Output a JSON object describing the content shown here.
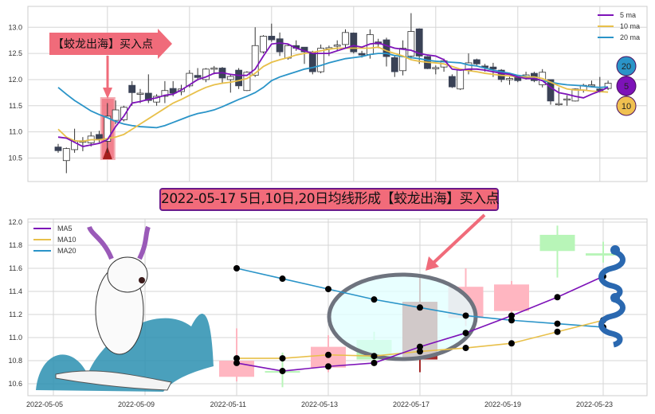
{
  "colors": {
    "ma5": "#7d12b8",
    "ma10": "#e8c04a",
    "ma20": "#2a94c8",
    "candle_down": "#3a4256",
    "candle_up_fill": "#ffffff",
    "highlight": "#f06b7a",
    "bottom_up": "#ffb6c1",
    "bottom_down": "#b8f5b8",
    "signal_candle": "#a52a2a",
    "grid": "#d6d6d6"
  },
  "top_annotation": "【蛟龙出海】买入点",
  "banner": "2022-05-17 5日,10日,20日均线形成【蛟龙出海】买入点",
  "badges": [
    {
      "label": "20",
      "color": "#2a94c8"
    },
    {
      "label": "5",
      "color": "#7d12b8"
    },
    {
      "label": "10",
      "color": "#f0c050"
    }
  ],
  "chart_data": [
    {
      "type": "candlestick",
      "ylim": [
        10.05,
        13.4
      ],
      "yticks": [
        "10.5",
        "11.0",
        "11.5",
        "12.0",
        "12.5",
        "13.0"
      ],
      "grid": true,
      "legend_placement": "top-right",
      "legend": [
        "5 ma",
        "10 ma",
        "20 ma"
      ],
      "ohlc": [
        [
          10.71,
          10.77,
          10.6,
          10.64
        ],
        [
          10.45,
          10.7,
          10.21,
          10.68
        ],
        [
          10.66,
          11.06,
          10.6,
          10.82
        ],
        [
          10.8,
          10.9,
          10.63,
          10.83
        ],
        [
          10.79,
          11.0,
          10.72,
          10.92
        ],
        [
          10.95,
          11.02,
          10.8,
          10.86
        ],
        [
          10.82,
          11.55,
          10.6,
          11.3
        ],
        [
          11.22,
          11.6,
          11.15,
          11.42
        ],
        [
          11.23,
          11.5,
          11.2,
          11.47
        ],
        [
          11.89,
          11.97,
          11.5,
          11.75
        ],
        [
          11.72,
          11.82,
          11.55,
          11.74
        ],
        [
          11.74,
          12.1,
          11.55,
          11.6
        ],
        [
          11.57,
          11.72,
          11.5,
          11.68
        ],
        [
          11.68,
          11.97,
          11.55,
          11.79
        ],
        [
          11.83,
          11.97,
          11.68,
          11.74
        ],
        [
          11.77,
          11.9,
          11.7,
          11.82
        ],
        [
          11.88,
          12.18,
          11.85,
          12.12
        ],
        [
          12.08,
          12.22,
          11.98,
          12.04
        ],
        [
          12.0,
          12.22,
          11.95,
          12.2
        ],
        [
          12.21,
          12.26,
          12.1,
          12.22
        ],
        [
          12.22,
          12.24,
          11.92,
          12.03
        ],
        [
          12.0,
          12.1,
          11.75,
          12.06
        ],
        [
          12.18,
          12.22,
          11.82,
          11.88
        ],
        [
          11.79,
          12.16,
          11.78,
          12.14
        ],
        [
          12.08,
          13.0,
          12.05,
          12.65
        ],
        [
          12.53,
          12.85,
          12.5,
          12.83
        ],
        [
          12.83,
          13.07,
          12.72,
          12.76
        ],
        [
          12.78,
          12.9,
          12.45,
          12.53
        ],
        [
          12.41,
          12.68,
          12.38,
          12.65
        ],
        [
          12.65,
          12.75,
          12.55,
          12.6
        ],
        [
          12.62,
          12.6,
          12.3,
          12.53
        ],
        [
          12.53,
          12.55,
          12.1,
          12.15
        ],
        [
          12.15,
          12.67,
          12.12,
          12.6
        ],
        [
          12.59,
          12.65,
          12.45,
          12.61
        ],
        [
          12.64,
          12.75,
          12.55,
          12.66
        ],
        [
          12.67,
          12.96,
          12.6,
          12.9
        ],
        [
          12.89,
          12.9,
          12.5,
          12.53
        ],
        [
          12.5,
          12.55,
          12.42,
          12.47
        ],
        [
          12.48,
          12.96,
          12.4,
          12.86
        ],
        [
          12.72,
          12.78,
          12.6,
          12.68
        ],
        [
          12.76,
          12.8,
          12.25,
          12.44
        ],
        [
          12.42,
          12.45,
          12.05,
          12.15
        ],
        [
          12.17,
          12.75,
          12.08,
          12.6
        ],
        [
          12.45,
          13.27,
          12.4,
          12.92
        ],
        [
          12.97,
          12.98,
          12.3,
          12.45
        ],
        [
          12.44,
          12.45,
          12.2,
          12.21
        ],
        [
          12.22,
          12.27,
          12.1,
          12.23
        ],
        [
          12.24,
          12.4,
          12.15,
          12.36
        ],
        [
          12.06,
          12.1,
          11.84,
          11.86
        ],
        [
          11.82,
          12.2,
          11.8,
          12.18
        ],
        [
          12.18,
          12.5,
          12.1,
          12.32
        ],
        [
          12.38,
          12.4,
          12.25,
          12.3
        ],
        [
          12.26,
          12.3,
          12.15,
          12.23
        ],
        [
          12.24,
          12.32,
          12.05,
          12.2
        ],
        [
          12.18,
          12.2,
          11.95,
          12.0
        ],
        [
          12.0,
          12.05,
          11.9,
          12.02
        ],
        [
          12.05,
          12.06,
          11.95,
          11.98
        ],
        [
          12.03,
          12.15,
          12.0,
          12.09
        ],
        [
          12.12,
          12.15,
          11.95,
          11.98
        ],
        [
          11.9,
          12.2,
          11.85,
          12.14
        ],
        [
          12.0,
          12.0,
          11.52,
          11.59
        ],
        [
          11.53,
          11.85,
          11.5,
          11.54
        ],
        [
          11.61,
          11.7,
          11.5,
          11.63
        ],
        [
          11.59,
          11.83,
          11.58,
          11.82
        ],
        [
          11.8,
          11.92,
          11.75,
          11.89
        ],
        [
          11.89,
          11.98,
          11.85,
          11.9
        ],
        [
          11.82,
          12.05,
          11.75,
          11.78
        ],
        [
          11.83,
          11.98,
          11.8,
          11.93
        ]
      ],
      "ma5": [
        10.9,
        10.88,
        10.8,
        10.72,
        10.75,
        10.78,
        10.85,
        11.1,
        11.3,
        11.55,
        11.58,
        11.62,
        11.65,
        11.7,
        11.72,
        11.8,
        11.9,
        12.0,
        12.05,
        12.12,
        12.13,
        12.1,
        12.08,
        12.08,
        12.2,
        12.45,
        12.68,
        12.7,
        12.68,
        12.6,
        12.55,
        12.5,
        12.5,
        12.5,
        12.55,
        12.6,
        12.65,
        12.62,
        12.68,
        12.7,
        12.65,
        12.6,
        12.58,
        12.56,
        12.5,
        12.47,
        12.45,
        12.38,
        12.2,
        12.18,
        12.2,
        12.2,
        12.18,
        12.15,
        12.12,
        12.1,
        12.05,
        12.02,
        12.02,
        11.98,
        11.85,
        11.75,
        11.72,
        11.68,
        11.65,
        11.72,
        11.78,
        11.85
      ],
      "ma10": [
        11.05,
        10.9,
        10.83,
        10.82,
        10.85,
        10.85,
        10.87,
        10.9,
        10.95,
        11.05,
        11.15,
        11.25,
        11.35,
        11.45,
        11.55,
        11.62,
        11.7,
        11.78,
        11.85,
        11.9,
        11.93,
        11.95,
        11.98,
        12.02,
        12.12,
        12.25,
        12.33,
        12.38,
        12.42,
        12.47,
        12.5,
        12.52,
        12.55,
        12.58,
        12.6,
        12.6,
        12.6,
        12.6,
        12.6,
        12.62,
        12.55,
        12.5,
        12.45,
        12.38,
        12.35,
        12.33,
        12.32,
        12.3,
        12.25,
        12.2,
        12.17,
        12.15,
        12.12,
        12.1,
        12.08,
        12.07,
        12.05,
        12.05,
        12.05,
        12.02,
        11.95,
        11.88,
        11.82,
        11.8,
        11.8,
        11.78,
        11.77,
        11.76
      ],
      "ma20": [
        11.85,
        11.72,
        11.6,
        11.5,
        11.4,
        11.33,
        11.27,
        11.2,
        11.15,
        11.12,
        11.1,
        11.09,
        11.08,
        11.12,
        11.18,
        11.24,
        11.3,
        11.35,
        11.38,
        11.42,
        11.48,
        11.55,
        11.62,
        11.68,
        11.75,
        11.85,
        11.98,
        12.05,
        12.1,
        12.15,
        12.2,
        12.23,
        12.27,
        12.32,
        12.36,
        12.4,
        12.42,
        12.44,
        12.48,
        12.5,
        12.5,
        12.46,
        12.44,
        12.42,
        12.4,
        12.37,
        12.35,
        12.34,
        12.33,
        12.32,
        12.28,
        12.26,
        12.22,
        12.18,
        12.15,
        12.12,
        12.08,
        12.06,
        12.02,
        11.98,
        11.95,
        11.92,
        11.9,
        11.89,
        11.88,
        11.86,
        11.85,
        11.86
      ],
      "signal_index": 6
    },
    {
      "type": "candlestick",
      "ylim": [
        10.5,
        12.03
      ],
      "yticks": [
        "10.6",
        "10.8",
        "11.0",
        "11.2",
        "11.4",
        "11.6",
        "11.8",
        "12.0"
      ],
      "grid": true,
      "legend_placement": "top-left",
      "legend": [
        "MA5",
        "MA10",
        "MA20"
      ],
      "xticks": [
        "2022-05-05",
        "2022-05-09",
        "2022-05-11",
        "2022-05-13",
        "2022-05-17",
        "2022-05-19",
        "2022-05-23"
      ],
      "dates": [
        "2022-05-11",
        "2022-05-12",
        "2022-05-13",
        "2022-05-16",
        "2022-05-17",
        "2022-05-18",
        "2022-05-19",
        "2022-05-20",
        "2022-05-23"
      ],
      "ohlc": [
        [
          10.66,
          11.08,
          10.62,
          10.8
        ],
        [
          10.71,
          10.87,
          10.57,
          10.7
        ],
        [
          10.74,
          11.02,
          10.7,
          10.92
        ],
        [
          10.98,
          11.05,
          10.8,
          10.81
        ],
        [
          10.81,
          11.52,
          10.7,
          11.31
        ],
        [
          11.17,
          11.6,
          11.1,
          11.44
        ],
        [
          11.23,
          11.49,
          11.2,
          11.46
        ],
        [
          11.89,
          11.97,
          11.52,
          11.75
        ],
        [
          11.73,
          11.83,
          11.65,
          11.71
        ]
      ],
      "candle_style": [
        "up",
        "down",
        "up",
        "down",
        "signal",
        "up",
        "up",
        "down",
        "down"
      ],
      "ma5": [
        10.78,
        10.71,
        10.75,
        10.78,
        10.92,
        11.04,
        11.19,
        11.35,
        11.53
      ],
      "ma10": [
        10.82,
        10.82,
        10.85,
        10.84,
        10.88,
        10.91,
        10.95,
        11.05,
        11.15
      ],
      "ma20": [
        11.6,
        11.51,
        11.42,
        11.33,
        11.26,
        11.19,
        11.15,
        11.12,
        11.09
      ],
      "signal_date": "2022-05-17"
    }
  ]
}
